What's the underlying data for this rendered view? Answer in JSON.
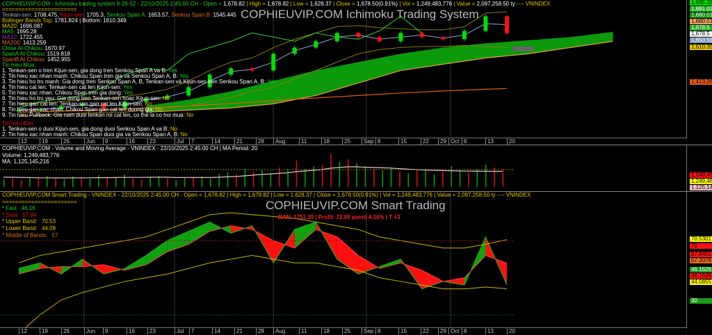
{
  "colors": {
    "up": "#00e000",
    "down": "#ff1010",
    "cloud": "#0a9a0a",
    "spanB": "#e8a040",
    "ma200": "#e85a10",
    "band": "#c8b800",
    "chikou": "#30d030",
    "vol_up": "#0a9a0a",
    "vol_down": "#d01010",
    "ma_vol": "#e8c0c8"
  },
  "ichimoku": {
    "header": {
      "title": "COPHIEUVIP.COM - Ichimoku trading system 9-26-52 - 22/10/2025 2:45:00 CH - Open = ",
      "open": "1,678.82",
      "high_l": " | High = ",
      "high": "1,678.82",
      "low_l": " | Low = ",
      "low": "1,628.37",
      "close_l": " | Close = ",
      "close": "1,678.50(0.91%)",
      "vol_l": " | Vol = ",
      "vol": "1,249,483,776",
      "value_l": " | Value = ",
      "value": "2,097,258.50 ty",
      "sym": " ---- VNINDEX"
    },
    "watermark": "COPHIEUVIP.COM Ichimoku Trading System",
    "divider": "=======================",
    "legend": {
      "tenkan_l": "Tenkan-sen:",
      "tenkan": "1708.475,",
      "kijun_l": "Kijun-sen:",
      "kijun": "1705.3,",
      "spana_l": "Senkou Span A:",
      "spana": "1653.57,",
      "spanb_l": "Senkou Span B:",
      "spanb": "1545.445",
      "boll_l": "Bollinger Bands Top:",
      "boll_top": "1781.824",
      "boll_sep": "| Bottom:",
      "boll_bot": "1610.349",
      "ma20_l": "MA20:",
      "ma20": "1696.087",
      "ma5_l": "MA5:",
      "ma5": "1695.28",
      "ma10_l": "MA10:",
      "ma10": "1722.455",
      "ma200_l": "MA200:",
      "ma200": "1413.259",
      "cac_l": "Close At Chikou:",
      "cac": "1670.97",
      "sac_l": "SpanA At Chikou:",
      "sac": "1519.818",
      "sbc_l": "SpanB At Chikou:",
      "sbc": "1452.955"
    },
    "buy_title": "Tin hieu Mua:",
    "buy": [
      {
        "text": "1. Tenkan-sen o tren Kijun-sen, gia dong tren Senkou Span A va B:",
        "ans": "Yes"
      },
      {
        "text": "2. Tin hieu xac nhan manh: Chikou Span tren gia va Senkou Span A, B:",
        "ans": "Yes"
      },
      {
        "text": "3. Tin hieu ho tro manh: Gia dong tren Senkou Span A, B, Tenkan-sen và Kijun-sen tren Senkou Span A, B:",
        "ans": "Yes"
      },
      {
        "text": "4. Tin hieu cat len: Tenkan-sen cat len Kijun-sen:",
        "ans": "Yes"
      },
      {
        "text": "5. Tin hieu xac nhan: Chikou Span tren gia dong:",
        "ans": "Yes"
      },
      {
        "text": "6. Tin hieu ho tro yeu: Gia dong tren Tenkan-sen hoac Kijun-sen:",
        "ans": "No"
      },
      {
        "text": "7. Tin hieu gan cat len: Tenkan-sen gan cat len Kijun-sen:",
        "ans": "No"
      },
      {
        "text": "8. Tin hieu gan xac nhan: Chikou Span gan cat len duong gia:",
        "ans": "No"
      },
      {
        "text": "9. Tin hieu Pullback: Gia nam duoi tenkan roi cat len, co the la co hoi mua:",
        "ans": "No"
      }
    ],
    "sell_title": "Tin hieu Ban:",
    "sell": [
      {
        "text": "1. Tenkan-sen o duoi Kijun-sen, gia dong duoi Senkou Span A va B:",
        "ans": "No"
      },
      {
        "text": "2. Tin hieu xac nhan manh: Chikou Span duoi gia va Senkou Span A, B:",
        "ans": "No"
      }
    ],
    "pink_label": "0000000",
    "right_labels": [
      {
        "text": "1,695.28",
        "bg": "#00e000",
        "fg": "#000"
      },
      {
        "text": "1,681.03",
        "bg": "#22b022",
        "fg": "#fff"
      },
      {
        "text": "1,680.01",
        "bg": "#0a8a0a",
        "fg": "#fff"
      },
      {
        "text": "1,680.01",
        "bg": "#f0a060",
        "fg": "#000"
      },
      {
        "text": "1,678.5",
        "bg": "#22b022",
        "fg": "#fff"
      },
      {
        "text": "1,678.5",
        "bg": "#fff",
        "fg": "#000"
      },
      {
        "text": "1,653.59",
        "bg": "#7a9ac0",
        "fg": "#fff"
      },
      {
        "text": "1,610.35",
        "bg": "#e8c800",
        "fg": "#000"
      },
      {
        "text": "1,413.26",
        "bg": "#e85a10",
        "fg": "#000"
      }
    ]
  },
  "x_axis": [
    "12",
    "19",
    "26",
    "Jun",
    "9",
    "16",
    "23",
    "Jul",
    "7",
    "14",
    "21",
    "28",
    "Aug",
    "11",
    "18",
    "25",
    "Sep",
    "8",
    "15",
    "22",
    "29",
    "Oct",
    "6",
    "13",
    "20"
  ],
  "volume": {
    "header": "COPHIEUVIP.COM - Volume and Moving Average - VNINDEX - 22/10/2025 2:45:00 CH | MA Period: 20",
    "volume_l": "Volume: ",
    "volume": "1,249,483,776",
    "ma_l": "MA: ",
    "ma": "1,125,145,216",
    "right_labels": [
      {
        "text": "1,249,483",
        "bg": "#ff1010",
        "fg": "#000"
      },
      {
        "text": "1,249,483",
        "bg": "#ffff00",
        "fg": "#000"
      },
      {
        "text": "1,125,145",
        "bg": "#f0c0c8",
        "fg": "#000"
      }
    ]
  },
  "smart": {
    "header": "COPHIEUVIP.COM Smart Trading - VNINDEX - 22/10/2025 2:45:00 CH - Open = 1,678.82 | High = 1,678.82 | Low = 1,628.37 | Close = 1,678.50(0.91%) | Vol = 1,249,483,776 | Value = 2,097,258.50 ty ---- VNINDEX",
    "watermark": "COPHIEUVIP.COM Smart Trading",
    "trade_note": "BAN: 1751.39 | Profit: 72.89 point| 4.16% | T +3",
    "divider": "=======================",
    "legend": [
      {
        "label": "* Fast",
        "value": "46.16",
        "cls": "g"
      },
      {
        "label": "* Slow",
        "value": "57.84",
        "cls": "r"
      },
      {
        "label": "* Upper Band:",
        "value": "70.53",
        "cls": "y"
      },
      {
        "label": "* Lower Band:",
        "value": "44.09",
        "cls": "y"
      },
      {
        "label": "* Middle of Bands:",
        "value": "57",
        "cls": "o"
      }
    ],
    "right_labels": [
      {
        "text": "70.5301",
        "bg": "#ffff00",
        "fg": "#000"
      },
      {
        "text": "70",
        "bg": "#ff1010",
        "fg": "#000"
      },
      {
        "text": "57.8401",
        "bg": "#ff1010",
        "fg": "#000"
      },
      {
        "text": "57.3078",
        "bg": "#e86a20",
        "fg": "#000"
      },
      {
        "text": "46.1626",
        "bg": "#1a9a1a",
        "fg": "#fff"
      },
      {
        "text": "46.1626",
        "bg": "#ff1010",
        "fg": "#000"
      },
      {
        "text": "44.0855",
        "bg": "#ffff00",
        "fg": "#000"
      },
      {
        "text": "30",
        "bg": "#1a9a1a",
        "fg": "#fff"
      }
    ]
  },
  "chart_data": [
    {
      "type": "candlestick",
      "title": "COPHIEUVIP.COM - Ichimoku trading system 9-26-52",
      "symbol": "VNINDEX",
      "x": [
        "2025-05-12",
        "2025-05-19",
        "2025-05-26",
        "2025-06-02",
        "2025-06-09",
        "2025-06-16",
        "2025-06-23",
        "2025-06-30",
        "2025-07-07",
        "2025-07-14",
        "2025-07-21",
        "2025-07-28",
        "2025-08-04",
        "2025-08-11",
        "2025-08-18",
        "2025-08-25",
        "2025-09-01",
        "2025-09-08",
        "2025-09-15",
        "2025-09-22",
        "2025-09-29",
        "2025-10-06",
        "2025-10-13",
        "2025-10-20"
      ],
      "close": [
        1310,
        1315,
        1330,
        1340,
        1320,
        1350,
        1365,
        1380,
        1420,
        1480,
        1510,
        1500,
        1580,
        1610,
        1640,
        1680,
        1660,
        1640,
        1680,
        1660,
        1650,
        1690,
        1760,
        1678.5
      ],
      "boll_top": [
        1340,
        1345,
        1350,
        1360,
        1365,
        1375,
        1390,
        1410,
        1450,
        1500,
        1540,
        1560,
        1610,
        1650,
        1680,
        1710,
        1715,
        1705,
        1700,
        1695,
        1695,
        1710,
        1775,
        1781.8
      ],
      "boll_bottom": [
        1280,
        1285,
        1290,
        1295,
        1298,
        1300,
        1310,
        1320,
        1330,
        1350,
        1370,
        1400,
        1420,
        1460,
        1500,
        1540,
        1580,
        1600,
        1610,
        1615,
        1615,
        1620,
        1615,
        1610.3
      ],
      "ma200": [
        1300,
        1302,
        1305,
        1308,
        1311,
        1315,
        1320,
        1325,
        1330,
        1336,
        1342,
        1348,
        1355,
        1362,
        1368,
        1374,
        1380,
        1386,
        1392,
        1397,
        1402,
        1406,
        1410,
        1413.3
      ],
      "cloud_x": [
        "2025-06-23",
        "2025-07-07",
        "2025-07-21",
        "2025-08-04",
        "2025-08-18",
        "2025-09-01",
        "2025-09-15",
        "2025-09-29",
        "2025-10-13",
        "2025-10-27",
        "2025-11-10",
        "2025-11-24"
      ],
      "span_a": [
        1330,
        1360,
        1400,
        1450,
        1500,
        1540,
        1580,
        1610,
        1630,
        1645,
        1660,
        1685
      ],
      "span_b": [
        1300,
        1310,
        1320,
        1340,
        1380,
        1440,
        1500,
        1530,
        1560,
        1580,
        1610,
        1640
      ]
    },
    {
      "type": "bar",
      "title": "Volume and Moving Average",
      "ma_period": 20,
      "values": [
        0.55,
        0.6,
        0.5,
        0.7,
        0.65,
        0.8,
        0.6,
        0.55,
        0.75,
        0.7,
        0.6,
        0.85,
        0.65,
        0.7,
        0.9,
        0.6,
        0.55,
        0.7,
        0.8,
        0.6,
        0.5,
        0.65,
        0.7,
        0.75,
        0.6,
        0.95,
        1.05,
        0.9,
        1.3,
        1.1,
        1.2,
        1.0,
        1.4,
        1.25,
        1.9,
        1.3,
        1.5,
        1.6,
        2.4,
        1.8,
        2.0,
        1.7,
        1.5,
        1.3,
        1.2,
        1.4,
        1.1,
        1.0,
        1.2,
        1.3,
        0.9,
        1.1,
        1.5,
        1.2,
        1.0,
        1.3,
        1.6,
        1.4,
        1.25
      ],
      "up": [
        1,
        0,
        0,
        1,
        0,
        1,
        0,
        1,
        1,
        0,
        1,
        1,
        0,
        1,
        1,
        0,
        0,
        1,
        1,
        0,
        1,
        1,
        0,
        1,
        1,
        1,
        1,
        0,
        1,
        0,
        1,
        1,
        0,
        1,
        0,
        1,
        1,
        0,
        0,
        1,
        0,
        1,
        1,
        0,
        1,
        1,
        0,
        1,
        0,
        1,
        1,
        0,
        1,
        1,
        0,
        1,
        1,
        0,
        0
      ],
      "ma": [
        0.7,
        0.7,
        0.68,
        0.68,
        0.66,
        0.66,
        0.65,
        0.65,
        0.66,
        0.66,
        0.66,
        0.67,
        0.67,
        0.68,
        0.69,
        0.69,
        0.69,
        0.7,
        0.7,
        0.7,
        0.68,
        0.68,
        0.68,
        0.68,
        0.68,
        0.7,
        0.73,
        0.75,
        0.8,
        0.85,
        0.9,
        0.93,
        0.98,
        1.02,
        1.1,
        1.15,
        1.2,
        1.25,
        1.35,
        1.4,
        1.45,
        1.45,
        1.42,
        1.4,
        1.38,
        1.36,
        1.32,
        1.28,
        1.25,
        1.22,
        1.2,
        1.18,
        1.17,
        1.15,
        1.14,
        1.13,
        1.13,
        1.12,
        1.125
      ],
      "unit": "billion shares"
    },
    {
      "type": "line",
      "title": "COPHIEUVIP.COM Smart Trading",
      "x": [
        "2025-05-12",
        "2025-05-19",
        "2025-05-26",
        "2025-06-02",
        "2025-06-09",
        "2025-06-16",
        "2025-06-23",
        "2025-06-30",
        "2025-07-07",
        "2025-07-14",
        "2025-07-21",
        "2025-07-28",
        "2025-08-04",
        "2025-08-11",
        "2025-08-18",
        "2025-08-25",
        "2025-09-01",
        "2025-09-08",
        "2025-09-15",
        "2025-09-22",
        "2025-09-29",
        "2025-10-06",
        "2025-10-13",
        "2025-10-20"
      ],
      "series": [
        {
          "name": "Fast",
          "values": [
            55,
            58,
            52,
            60,
            52,
            55,
            62,
            70,
            75,
            80,
            74,
            78,
            58,
            76,
            80,
            60,
            52,
            56,
            60,
            44,
            48,
            46,
            72,
            46.16
          ]
        },
        {
          "name": "Slow",
          "values": [
            52,
            55,
            56,
            56,
            57,
            54,
            57,
            64,
            68,
            75,
            78,
            76,
            70,
            66,
            76,
            72,
            62,
            55,
            58,
            54,
            48,
            50,
            62,
            57.84
          ]
        },
        {
          "name": "Upper Band",
          "values": [
            58,
            62,
            64,
            66,
            68,
            70,
            72,
            76,
            80,
            84,
            85,
            84,
            83,
            82,
            80,
            78,
            76,
            72,
            70,
            68,
            66,
            66,
            68,
            70.53
          ]
        },
        {
          "name": "Lower Band",
          "values": [
            20,
            30,
            38,
            42,
            45,
            48,
            50,
            52,
            55,
            58,
            60,
            62,
            60,
            58,
            58,
            56,
            54,
            50,
            48,
            46,
            44,
            44,
            45,
            44.09
          ]
        }
      ],
      "reference_lines": [
        70,
        30
      ]
    }
  ]
}
